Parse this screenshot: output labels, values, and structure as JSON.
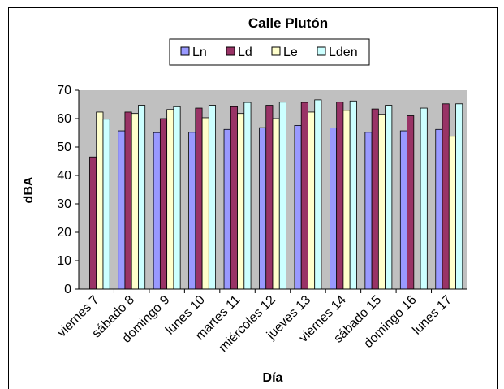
{
  "chart_data": {
    "type": "bar",
    "title": "Calle Plutón",
    "xlabel": "Día",
    "ylabel": "dBA",
    "ylim": [
      0,
      70
    ],
    "yticks": [
      0,
      10,
      20,
      30,
      40,
      50,
      60,
      70
    ],
    "grid": false,
    "legend_position": "top",
    "plot_background": "#c0c0c0",
    "categories": [
      "viernes 7",
      "sábado 8",
      "domingo 9",
      "lunes 10",
      "martes 11",
      "miércoles 12",
      "jueves 13",
      "viernes 14",
      "sábado 15",
      "domingo 16",
      "lunes 17"
    ],
    "series": [
      {
        "name": "Ln",
        "color": "#9999ff",
        "values": [
          null,
          55.7,
          55.1,
          55.2,
          56.2,
          56.8,
          57.6,
          56.7,
          55.2,
          55.7,
          56.2
        ]
      },
      {
        "name": "Ld",
        "color": "#993366",
        "values": [
          46.5,
          62.3,
          60.0,
          63.7,
          64.2,
          64.7,
          65.7,
          65.8,
          63.4,
          61.0,
          65.2
        ]
      },
      {
        "name": "Le",
        "color": "#ffffcc",
        "values": [
          62.3,
          61.8,
          63.2,
          60.3,
          61.8,
          60.0,
          62.3,
          62.9,
          61.5,
          null,
          53.8
        ]
      },
      {
        "name": "Lden",
        "color": "#ccffff",
        "values": [
          59.8,
          64.7,
          64.2,
          64.7,
          65.7,
          65.8,
          66.6,
          66.2,
          64.7,
          63.7,
          65.2
        ]
      }
    ]
  }
}
